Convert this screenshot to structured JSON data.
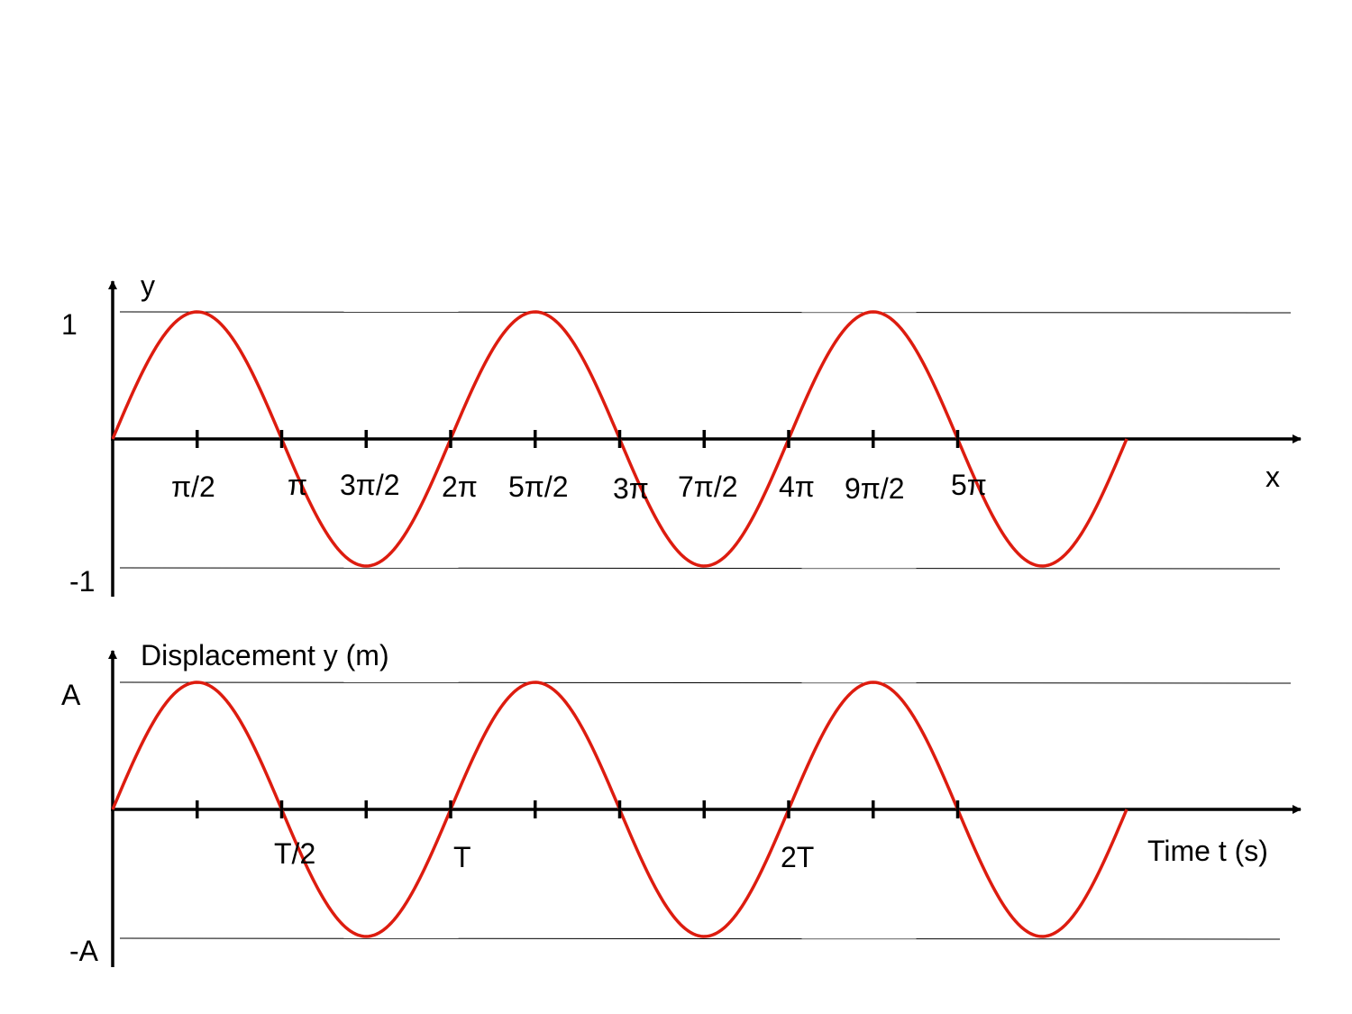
{
  "style": {
    "curve_color": "#dd1c0f",
    "axis_color": "#000000",
    "reference_line_color": "#000000",
    "background": "#ffffff"
  },
  "chart_data": [
    {
      "type": "line",
      "title": "",
      "xlabel": "x",
      "ylabel": "y",
      "y_tick_labels": {
        "max": "1",
        "min": "-1"
      },
      "x_tick_labels": [
        "π/2",
        "π",
        "3π/2",
        "2π",
        "5π/2",
        "3π",
        "7π/2",
        "4π",
        "9π/2",
        "5π"
      ],
      "xlim": [
        0,
        5.5
      ],
      "ylim": [
        -1,
        1
      ],
      "x_unit": "π",
      "series": [
        {
          "function": "sin",
          "x_range": [
            0,
            6
          ],
          "amplitude": 1
        }
      ],
      "reference_lines": [
        1,
        -1
      ],
      "grid": false
    },
    {
      "type": "line",
      "title": "",
      "xlabel": "Time t (s)",
      "ylabel": "Displacement y (m)",
      "y_tick_labels": {
        "max": "A",
        "min": "-A"
      },
      "x_tick_labels": [
        "",
        "T/2",
        "",
        "T",
        "",
        "",
        "",
        "2T",
        "",
        ""
      ],
      "xlim": [
        0,
        2.75
      ],
      "ylim": [
        -1,
        1
      ],
      "x_unit": "T",
      "series": [
        {
          "function": "sin",
          "x_range": [
            0,
            3
          ],
          "amplitude": 1
        }
      ],
      "reference_lines": [
        1,
        -1
      ],
      "grid": false
    }
  ]
}
